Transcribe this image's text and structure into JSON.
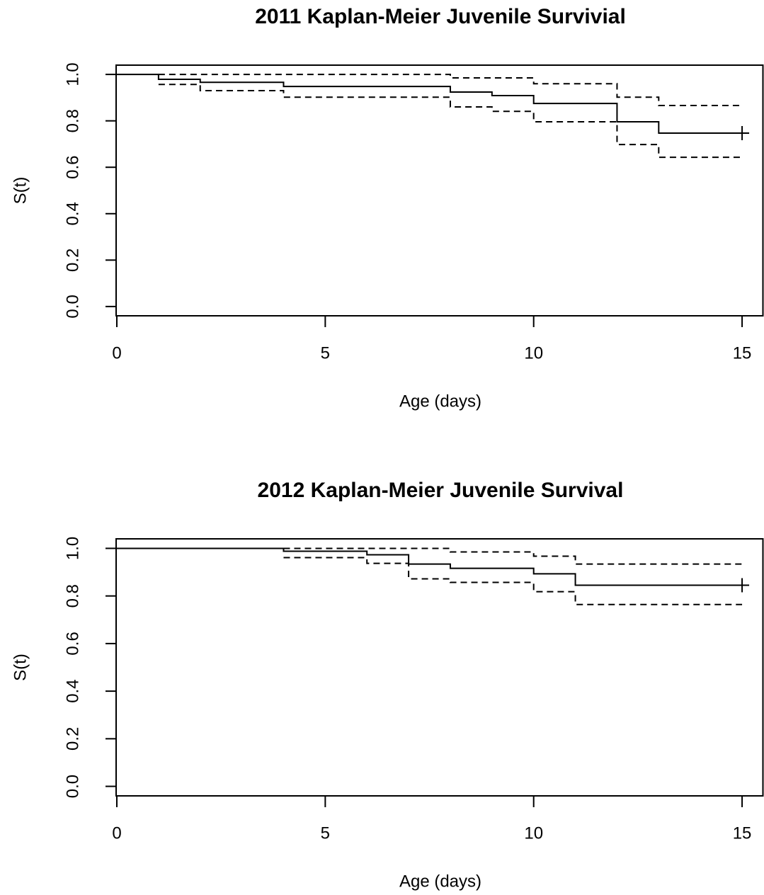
{
  "chart_data": [
    {
      "type": "step",
      "title": "2011 Kaplan-Meier Juvenile Survivial",
      "xlabel": "Age (days)",
      "ylabel": "S(t)",
      "x": [
        0,
        1,
        2,
        4,
        8,
        9,
        10,
        12,
        13,
        15
      ],
      "series": [
        {
          "color": "#000000",
          "linestyle": "solid",
          "values": [
            1.0,
            0.979,
            0.966,
            0.948,
            0.924,
            0.909,
            0.875,
            0.796,
            0.747,
            0.747
          ]
        },
        {
          "color": "#000000",
          "linestyle": "dashed",
          "values": [
            null,
            1.0,
            1.0,
            1.0,
            0.985,
            0.985,
            0.96,
            0.902,
            0.866,
            0.866
          ]
        },
        {
          "color": "#000000",
          "linestyle": "dashed",
          "values": [
            null,
            0.957,
            0.93,
            0.902,
            0.86,
            0.841,
            0.796,
            0.698,
            0.643,
            0.643
          ]
        }
      ],
      "censor_x": [
        15
      ],
      "xlim": [
        0,
        15.5
      ],
      "ylim": [
        -0.04,
        1.04
      ],
      "xticks": [
        0,
        5,
        10,
        15
      ],
      "yticks": [
        {
          "value": 0,
          "label": "0.0"
        },
        0.2,
        0.4,
        0.6,
        0.8,
        {
          "value": 1,
          "label": "1.0"
        }
      ]
    },
    {
      "type": "step",
      "title": "2012 Kaplan-Meier Juvenile Survival",
      "xlabel": "Age (days)",
      "ylabel": "S(t)",
      "x": [
        0,
        4,
        6,
        7,
        8,
        10,
        11,
        15
      ],
      "series": [
        {
          "color": "#000000",
          "linestyle": "solid",
          "values": [
            1.0,
            0.988,
            0.973,
            0.934,
            0.916,
            0.893,
            0.845,
            0.845
          ]
        },
        {
          "color": "#000000",
          "linestyle": "dashed",
          "values": [
            null,
            1.0,
            1.0,
            1.0,
            0.985,
            0.967,
            0.934,
            0.934
          ]
        },
        {
          "color": "#000000",
          "linestyle": "dashed",
          "values": [
            null,
            0.961,
            0.937,
            0.872,
            0.857,
            0.818,
            0.764,
            0.764
          ]
        }
      ],
      "censor_x": [
        15
      ],
      "xlim": [
        0,
        15.5
      ],
      "ylim": [
        -0.04,
        1.04
      ],
      "xticks": [
        0,
        5,
        10,
        15
      ],
      "yticks": [
        {
          "value": 0,
          "label": "0.0"
        },
        0.2,
        0.4,
        0.6,
        0.8,
        {
          "value": 1,
          "label": "1.0"
        }
      ]
    }
  ]
}
